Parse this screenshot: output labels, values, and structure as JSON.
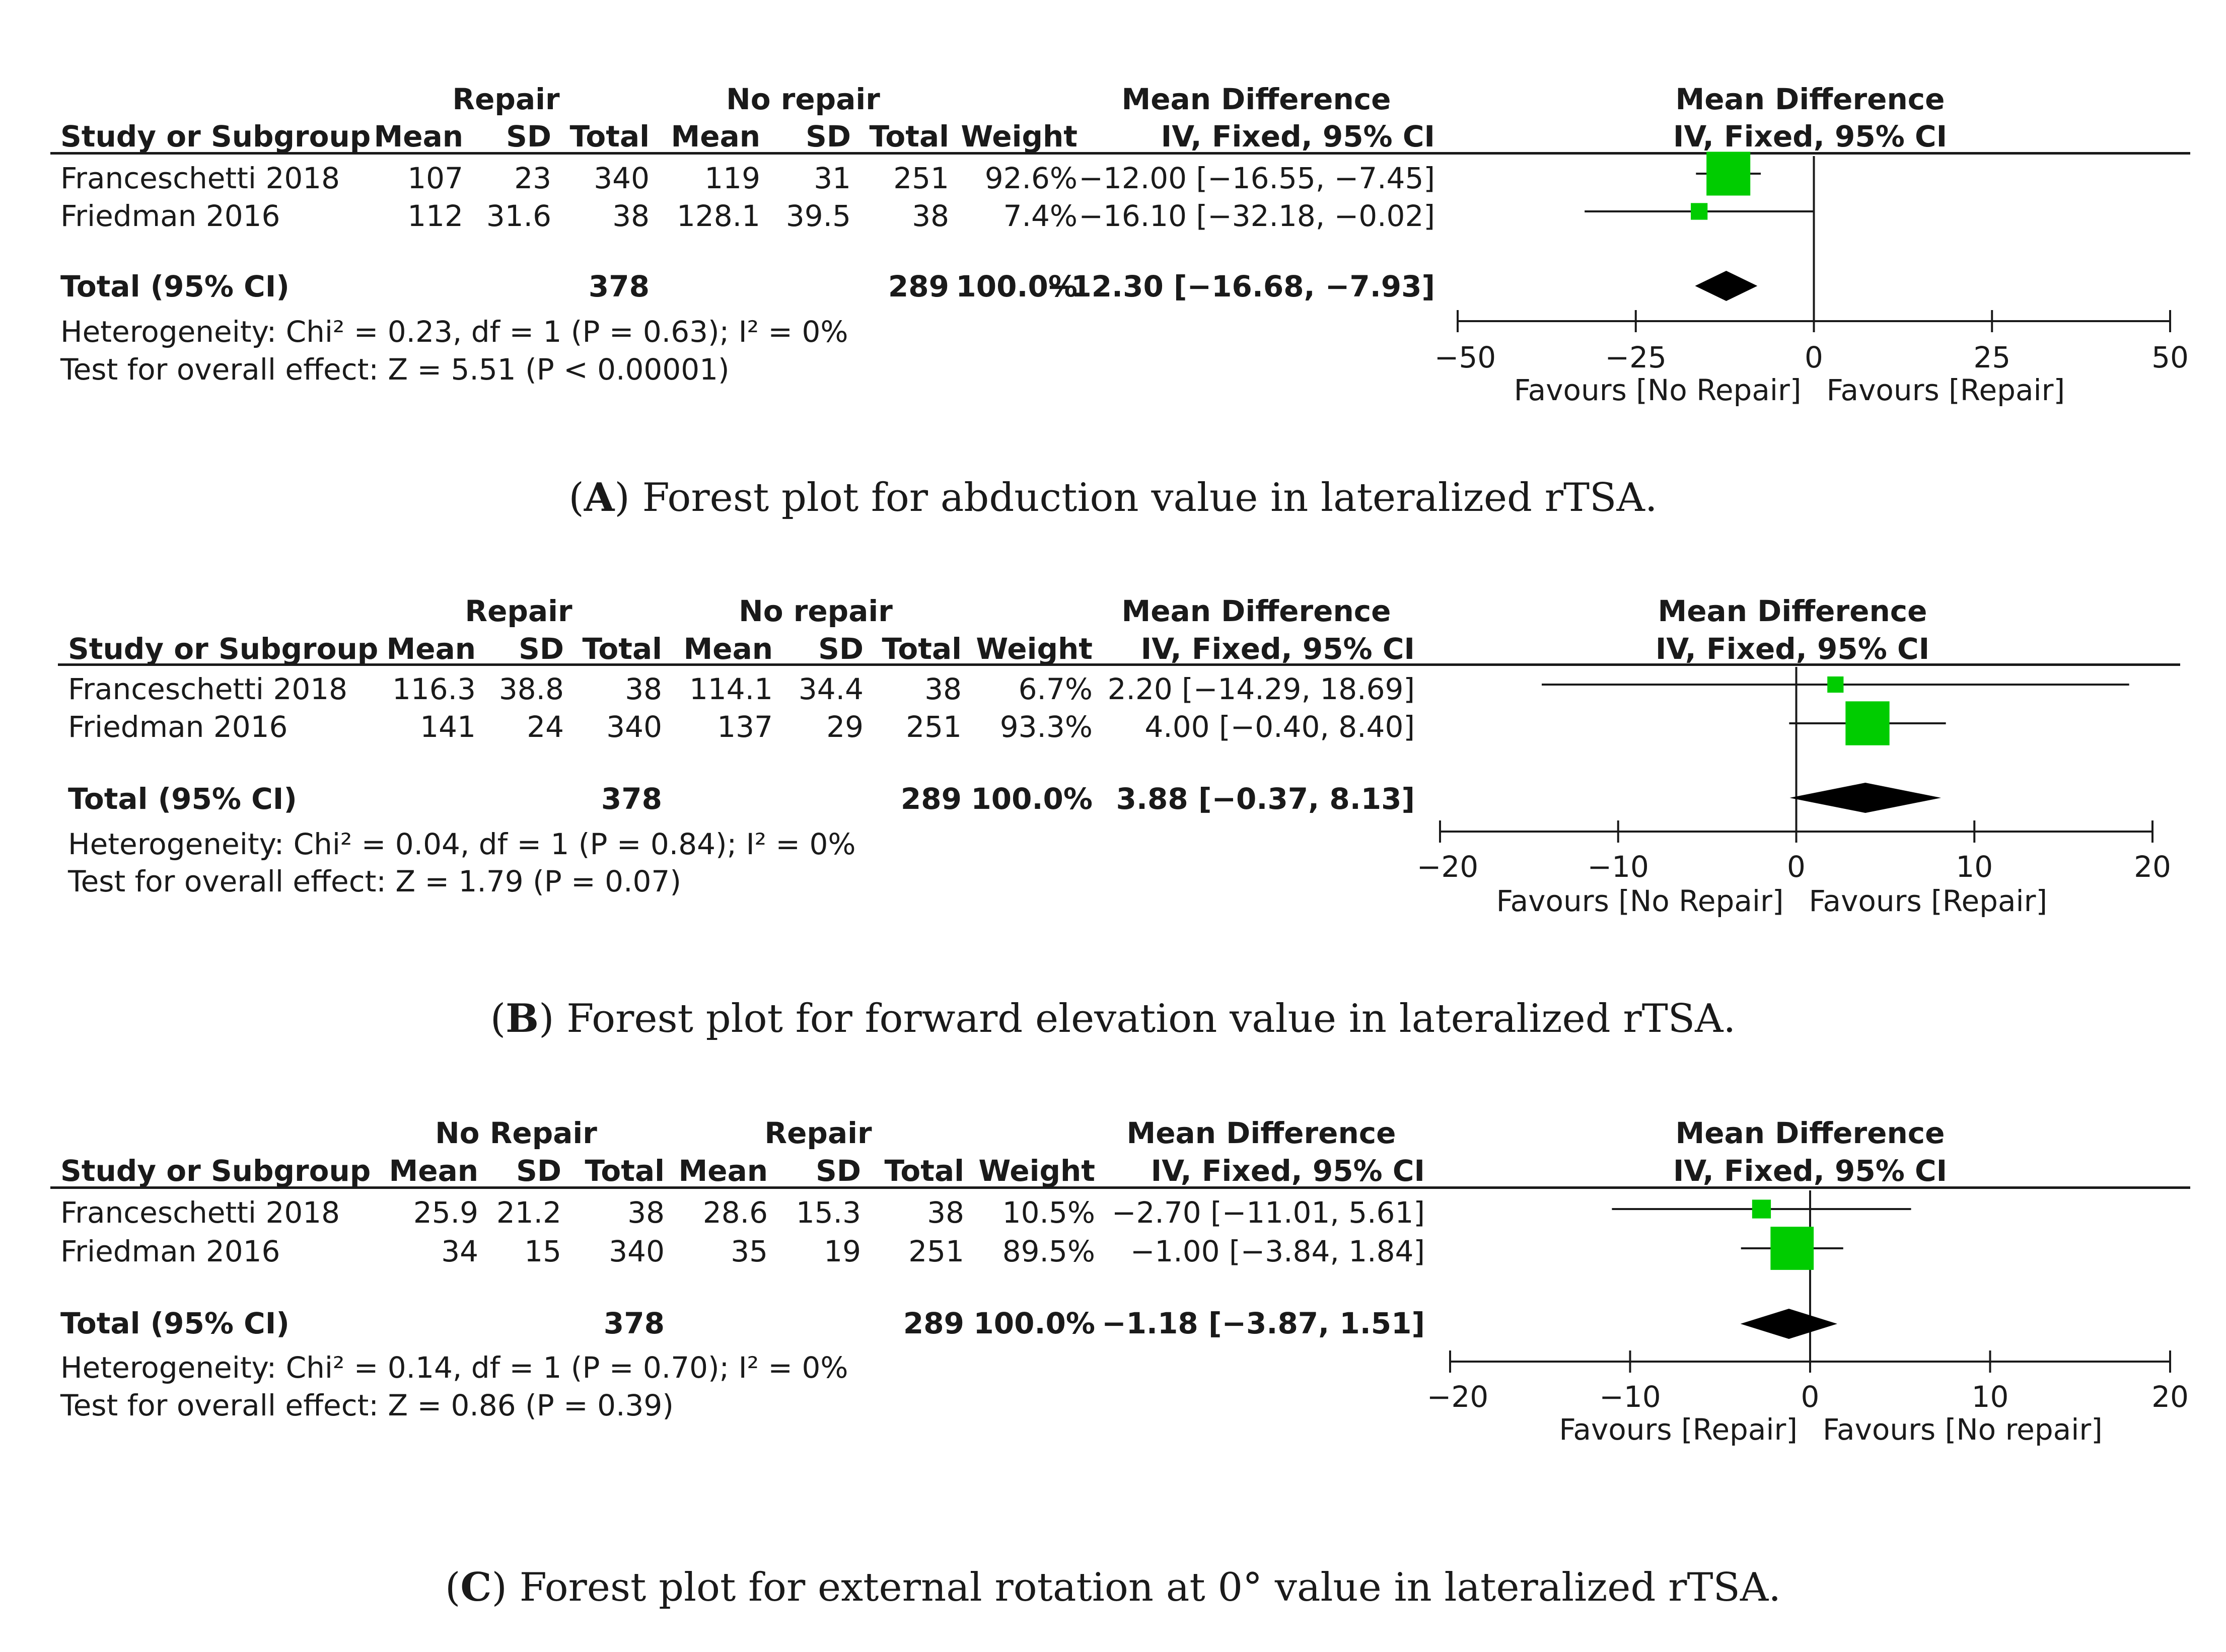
{
  "panels": [
    {
      "group1_label": "Repair",
      "group2_label": "No repair",
      "col_study": "Study or Subgroup",
      "col_mean": "Mean",
      "col_sd": "SD",
      "col_total": "Total",
      "col_weight": "Weight",
      "md_header": "Mean Difference",
      "md_sub": "IV, Fixed, 95% CI",
      "studies": [
        {
          "name": "Franceschetti 2018",
          "m1": "107",
          "sd1": "23",
          "n1": "340",
          "m2": "119",
          "sd2": "31",
          "n2": "251",
          "weight": "92.6%",
          "ci": "−12.00 [−16.55, −7.45]"
        },
        {
          "name": "Friedman 2016",
          "m1": "112",
          "sd1": "31.6",
          "n1": "38",
          "m2": "128.1",
          "sd2": "39.5",
          "n2": "38",
          "weight": "7.4%",
          "ci": "−16.10 [−32.18, −0.02]"
        }
      ],
      "total": {
        "label": "Total (95% CI)",
        "n1": "378",
        "n2": "289",
        "weight": "100.0%",
        "ci": "−12.30 [−16.68, −7.93]"
      },
      "heterogeneity": "Heterogeneity: Chi² = 0.23, df = 1 (P = 0.63); I² = 0%",
      "overall": "Test for overall effect: Z = 5.51 (P < 0.00001)",
      "caption_letter": "A",
      "caption_text": ") Forest plot for abduction value in lateralized rTSA."
    },
    {
      "group1_label": "Repair",
      "group2_label": "No repair",
      "col_study": "Study or Subgroup",
      "col_mean": "Mean",
      "col_sd": "SD",
      "col_total": "Total",
      "col_weight": "Weight",
      "md_header": "Mean Difference",
      "md_sub": "IV, Fixed, 95% CI",
      "studies": [
        {
          "name": "Franceschetti 2018",
          "m1": "116.3",
          "sd1": "38.8",
          "n1": "38",
          "m2": "114.1",
          "sd2": "34.4",
          "n2": "38",
          "weight": "6.7%",
          "ci": "2.20 [−14.29, 18.69]"
        },
        {
          "name": "Friedman 2016",
          "m1": "141",
          "sd1": "24",
          "n1": "340",
          "m2": "137",
          "sd2": "29",
          "n2": "251",
          "weight": "93.3%",
          "ci": "4.00 [−0.40, 8.40]"
        }
      ],
      "total": {
        "label": "Total (95% CI)",
        "n1": "378",
        "n2": "289",
        "weight": "100.0%",
        "ci": "3.88 [−0.37, 8.13]"
      },
      "heterogeneity": "Heterogeneity: Chi² = 0.04, df = 1 (P = 0.84); I² = 0%",
      "overall": "Test for overall effect: Z = 1.79 (P = 0.07)",
      "caption_letter": "B",
      "caption_text": ") Forest plot for forward elevation value in lateralized rTSA."
    },
    {
      "group1_label": "No Repair",
      "group2_label": "Repair",
      "col_study": "Study or Subgroup",
      "col_mean": "Mean",
      "col_sd": "SD",
      "col_total": "Total",
      "col_weight": "Weight",
      "md_header": "Mean Difference",
      "md_sub": "IV, Fixed, 95% CI",
      "studies": [
        {
          "name": "Franceschetti 2018",
          "m1": "25.9",
          "sd1": "21.2",
          "n1": "38",
          "m2": "28.6",
          "sd2": "15.3",
          "n2": "38",
          "weight": "10.5%",
          "ci": "−2.70 [−11.01, 5.61]"
        },
        {
          "name": "Friedman 2016",
          "m1": "34",
          "sd1": "15",
          "n1": "340",
          "m2": "35",
          "sd2": "19",
          "n2": "251",
          "weight": "89.5%",
          "ci": "−1.00 [−3.84, 1.84]"
        }
      ],
      "total": {
        "label": "Total (95% CI)",
        "n1": "378",
        "n2": "289",
        "weight": "100.0%",
        "ci": "−1.18 [−3.87, 1.51]"
      },
      "heterogeneity": "Heterogeneity: Chi² = 0.14, df = 1 (P = 0.70); I² = 0%",
      "overall": "Test for overall effect: Z = 0.86 (P = 0.39)",
      "caption_letter": "C",
      "caption_text": ") Forest plot for external rotation at 0° value in lateralized rTSA."
    }
  ],
  "colors": {
    "square": "#00cc00",
    "diamond": "#000000",
    "line": "#1a1a1a"
  },
  "chart_data": [
    {
      "type": "forest",
      "title": "Mean Difference IV, Fixed, 95% CI",
      "xlim": [
        -50,
        50
      ],
      "ticks": [
        "−50",
        "−25",
        "0",
        "25",
        "50"
      ],
      "tick_values": [
        -50,
        -25,
        0,
        25,
        50
      ],
      "left_label": "Favours [No Repair]",
      "right_label": "Favours [Repair]",
      "studies": [
        {
          "name": "Franceschetti 2018",
          "md": -12.0,
          "lo": -16.55,
          "hi": -7.45,
          "weight": 92.6
        },
        {
          "name": "Friedman 2016",
          "md": -16.1,
          "lo": -32.18,
          "hi": -0.02,
          "weight": 7.4
        }
      ],
      "total": {
        "md": -12.3,
        "lo": -16.68,
        "hi": -7.93
      }
    },
    {
      "type": "forest",
      "title": "Mean Difference IV, Fixed, 95% CI",
      "xlim": [
        -20,
        20
      ],
      "ticks": [
        "−20",
        "−10",
        "0",
        "10",
        "20"
      ],
      "tick_values": [
        -20,
        -10,
        0,
        10,
        20
      ],
      "left_label": "Favours [No Repair]",
      "right_label": "Favours [Repair]",
      "studies": [
        {
          "name": "Franceschetti 2018",
          "md": 2.2,
          "lo": -14.29,
          "hi": 18.69,
          "weight": 6.7
        },
        {
          "name": "Friedman 2016",
          "md": 4.0,
          "lo": -0.4,
          "hi": 8.4,
          "weight": 93.3
        }
      ],
      "total": {
        "md": 3.88,
        "lo": -0.37,
        "hi": 8.13
      }
    },
    {
      "type": "forest",
      "title": "Mean Difference IV, Fixed, 95% CI",
      "xlim": [
        -20,
        20
      ],
      "ticks": [
        "−20",
        "−10",
        "0",
        "10",
        "20"
      ],
      "tick_values": [
        -20,
        -10,
        0,
        10,
        20
      ],
      "left_label": "Favours [Repair]",
      "right_label": "Favours [No repair]",
      "studies": [
        {
          "name": "Franceschetti 2018",
          "md": -2.7,
          "lo": -11.01,
          "hi": 5.61,
          "weight": 10.5
        },
        {
          "name": "Friedman 2016",
          "md": -1.0,
          "lo": -3.84,
          "hi": 1.84,
          "weight": 89.5
        }
      ],
      "total": {
        "md": -1.18,
        "lo": -3.87,
        "hi": 1.51
      }
    }
  ]
}
